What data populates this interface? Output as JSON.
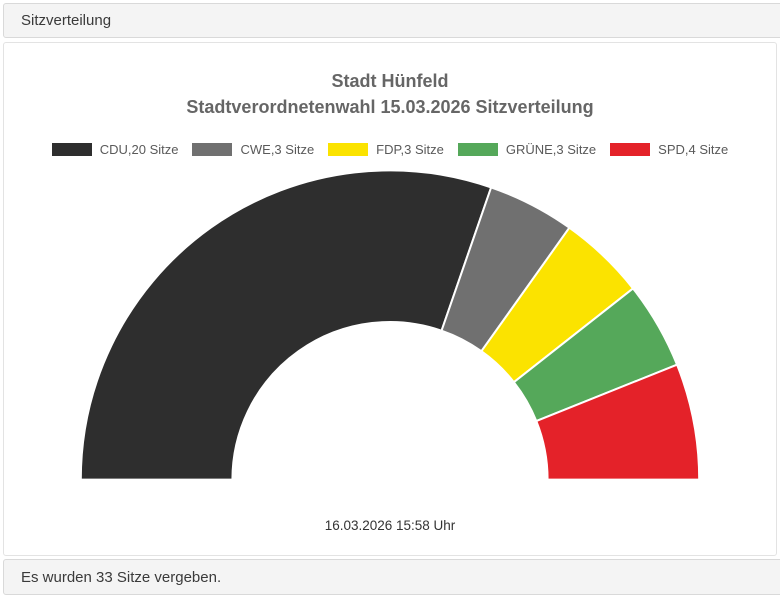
{
  "header": {
    "title": "Sitzverteilung"
  },
  "chart": {
    "title_line1": "Stadt Hünfeld",
    "title_line2": "Stadtverordnetenwahl 15.03.2026 Sitzverteilung",
    "timestamp": "16.03.2026 15:58 Uhr"
  },
  "chart_data": {
    "type": "pie",
    "variant": "half-donut",
    "title": "Stadt Hünfeld Stadtverordnetenwahl 15.03.2026 Sitzverteilung",
    "total_seats": 33,
    "unit": "Sitze",
    "start_angle_deg": 180,
    "end_angle_deg": 0,
    "inner_radius_ratio": 0.51,
    "legend_position": "top",
    "series": [
      {
        "name": "CDU",
        "seats": 20,
        "legend_label": "CDU,20 Sitze",
        "color": "#2e2e2e"
      },
      {
        "name": "CWE",
        "seats": 3,
        "legend_label": "CWE,3 Sitze",
        "color": "#707070"
      },
      {
        "name": "FDP",
        "seats": 3,
        "legend_label": "FDP,3 Sitze",
        "color": "#fbe300"
      },
      {
        "name": "GRÜNE",
        "seats": 3,
        "legend_label": "GRÜNE,3 Sitze",
        "color": "#55a85a"
      },
      {
        "name": "SPD",
        "seats": 4,
        "legend_label": "SPD,4 Sitze",
        "color": "#e42229"
      }
    ]
  },
  "footer": {
    "status": "Es wurden 33 Sitze vergeben."
  }
}
